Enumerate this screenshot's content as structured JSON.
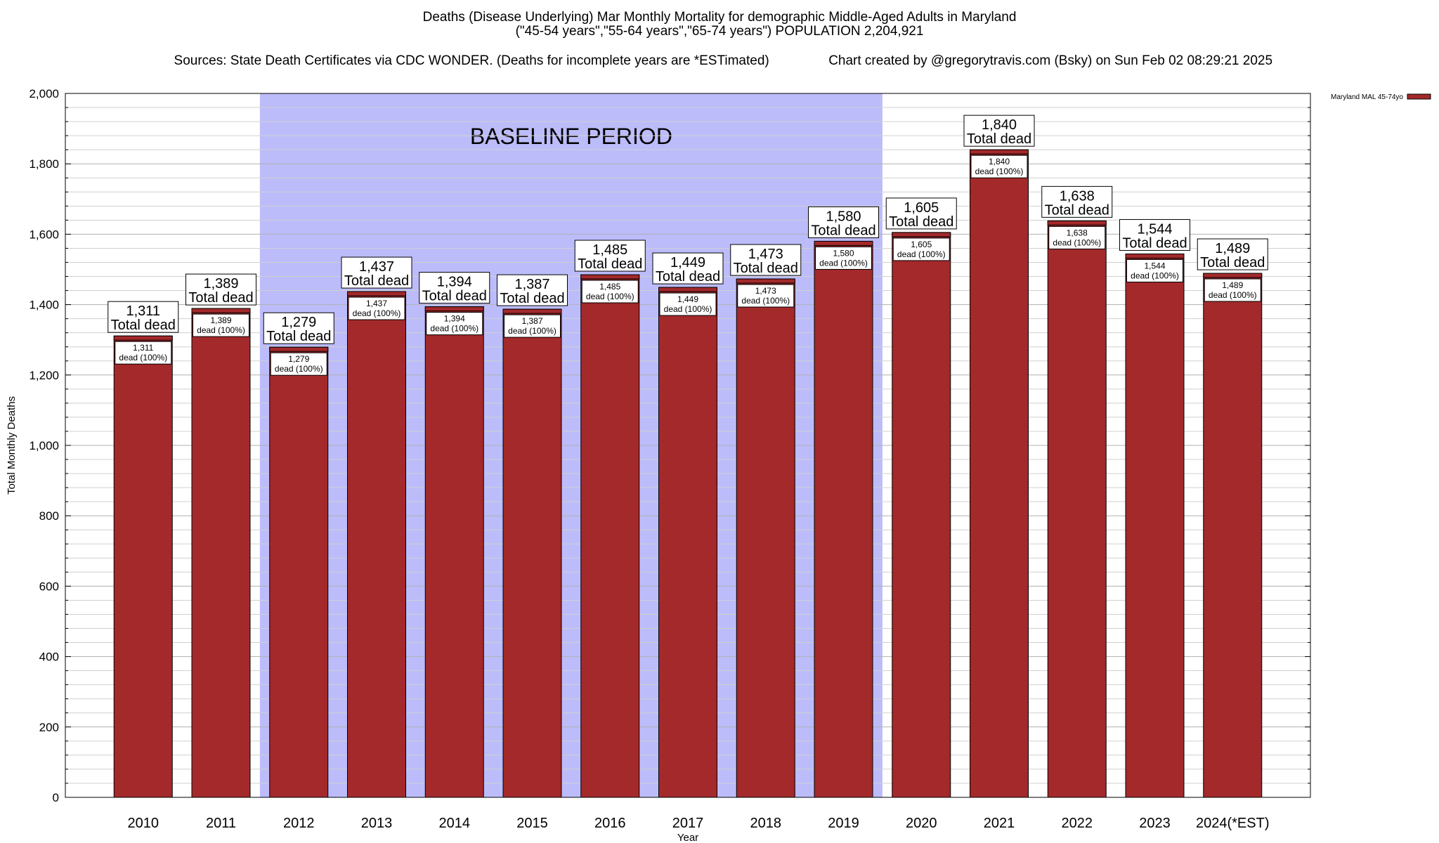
{
  "chart_data": {
    "type": "bar",
    "title": "Deaths (Disease Underlying) Mar Monthly Mortality for demographic Middle-Aged Adults in Maryland",
    "subtitle": "(\"45-54 years\",\"55-64 years\",\"65-74 years\") POPULATION 2,204,921",
    "sources": "Sources: State Death Certificates via CDC WONDER. (Deaths for incomplete years are *ESTimated)",
    "credit": "Chart created by @gregorytravis.com (Bsky) on Sun Feb 02 08:29:21 2025",
    "xlabel": "Year",
    "ylabel": "Total Monthly Deaths",
    "ylim": [
      0,
      2000
    ],
    "yticks": [
      0,
      200,
      400,
      600,
      800,
      1000,
      1200,
      1400,
      1600,
      1800,
      2000
    ],
    "ytick_labels": [
      "0",
      "200",
      "400",
      "600",
      "800",
      "1,000",
      "1,200",
      "1,400",
      "1,600",
      "1,800",
      "2,000"
    ],
    "categories": [
      "2010",
      "2011",
      "2012",
      "2013",
      "2014",
      "2015",
      "2016",
      "2017",
      "2018",
      "2019",
      "2020",
      "2021",
      "2022",
      "2023",
      "2024(*EST)"
    ],
    "series": [
      {
        "name": "Maryland MAL 45-74yo",
        "color": "#a3292b",
        "values": [
          1311,
          1389,
          1279,
          1437,
          1394,
          1387,
          1485,
          1449,
          1473,
          1580,
          1605,
          1840,
          1638,
          1544,
          1489
        ]
      }
    ],
    "value_labels": [
      "1,311",
      "1,389",
      "1,279",
      "1,437",
      "1,394",
      "1,387",
      "1,485",
      "1,449",
      "1,473",
      "1,580",
      "1,605",
      "1,840",
      "1,638",
      "1,544",
      "1,489"
    ],
    "top_label_suffix": "Total dead",
    "inner_label_suffix": "dead (100%)",
    "baseline": {
      "label": "BASELINE PERIOD",
      "start": "2012",
      "end": "2019",
      "color": "#bcbcfb"
    },
    "grid": true,
    "legend_position": "top-right"
  }
}
